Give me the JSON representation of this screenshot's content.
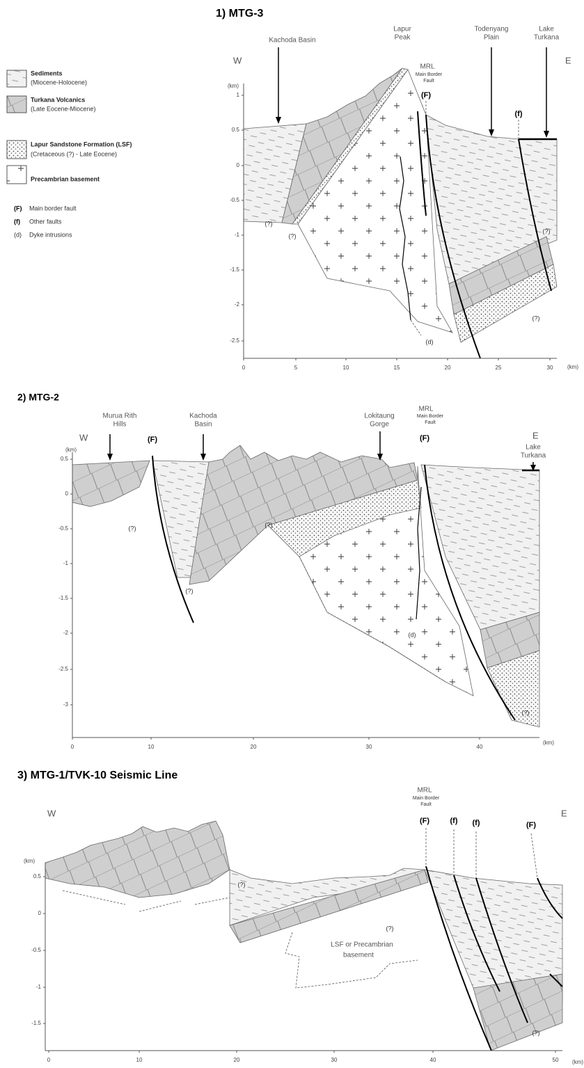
{
  "panels": [
    {
      "title": "1) MTG-3",
      "west": "W",
      "east": "E",
      "y_unit": "(km)",
      "x_unit": "(km)",
      "yticks": [
        "1",
        "0.5",
        "0",
        "-0.5",
        "-1",
        "-1.5",
        "-2",
        "-2.5"
      ],
      "xticks": [
        "0",
        "5",
        "10",
        "15",
        "20",
        "25",
        "30"
      ],
      "places": [
        [
          "Kachoda Basin"
        ],
        [
          "Lapur",
          "Peak"
        ],
        [
          "Todenyang",
          "Plain"
        ],
        [
          "Lake",
          "Turkana"
        ]
      ],
      "mrl": [
        "MRL",
        "Main Border",
        "Fault"
      ],
      "faults": [
        "(F)",
        "(f)"
      ],
      "uncertain": [
        "(?)",
        "(?)",
        "(?)",
        "(?)"
      ],
      "dyke": "(d)"
    },
    {
      "title": "2) MTG-2",
      "west": "W",
      "east": "E",
      "y_unit": "(km)",
      "x_unit": "(km)",
      "yticks": [
        "0.5",
        "0",
        "-0.5",
        "-1",
        "-1.5",
        "-2",
        "-2.5",
        "-3"
      ],
      "xticks": [
        "0",
        "10",
        "20",
        "30",
        "40"
      ],
      "places": [
        [
          "Murua Rith",
          "Hills"
        ],
        [
          "Kachoda",
          "Basin"
        ],
        [
          "Lokitaung",
          "Gorge"
        ],
        [
          "Lake",
          "Turkana"
        ]
      ],
      "mrl": [
        "MRL",
        "Main Border",
        "Fault"
      ],
      "faults": [
        "(F)",
        "(F)"
      ],
      "uncertain": [
        "(?)",
        "(?)",
        "(?)",
        "(?)"
      ],
      "dyke": "(d)"
    },
    {
      "title": "3) MTG-1/TVK-10 Seismic Line",
      "west": "W",
      "east": "E",
      "y_unit": "(km)",
      "x_unit": "(km)",
      "yticks": [
        "0.5",
        "0",
        "-0.5",
        "-1",
        "-1.5"
      ],
      "xticks": [
        "0",
        "10",
        "20",
        "30",
        "40",
        "50"
      ],
      "mrl": [
        "MRL",
        "Main Border",
        "Fault"
      ],
      "faults": [
        "(F)",
        "(f)",
        "(f)",
        "(F)"
      ],
      "uncertain": [
        "(?)",
        "(?)",
        "(?)"
      ],
      "note": [
        "LSF or Precambrian",
        "basement"
      ]
    }
  ],
  "legend": {
    "units": [
      {
        "name": "Sediments",
        "age": "(Miocene-Holocene)"
      },
      {
        "name": "Turkana Volcanics",
        "age": "(Late Eocene-Miocene)"
      },
      {
        "name": "Lapur Sandstone Formation (LSF)",
        "age": "(Cretaceous (?) - Late Eocene)"
      },
      {
        "name": "Precambrian basement"
      }
    ],
    "symbols": [
      {
        "symbol": "(F)",
        "meaning": "Main border fault"
      },
      {
        "symbol": "(f)",
        "meaning": "Other faults"
      },
      {
        "symbol": "(d)",
        "meaning": "Dyke intrusions"
      }
    ]
  }
}
